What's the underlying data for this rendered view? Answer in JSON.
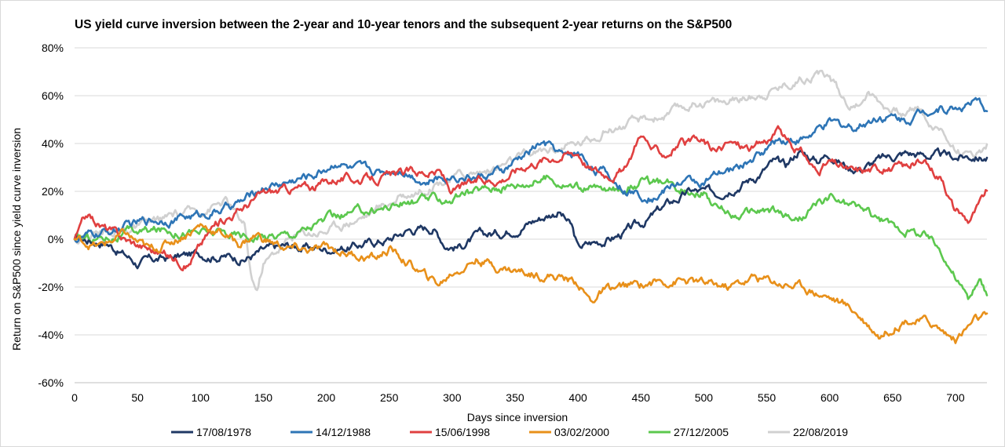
{
  "chart_data": {
    "type": "line",
    "title": "US yield curve inversion between the 2-year and 10-year tenors and the subsequent 2-year returns on the S&P500",
    "xlabel": "Days since inversion",
    "ylabel": "Return on S&P500 since yield curve inversion",
    "xlim": [
      0,
      725
    ],
    "ylim": [
      -60,
      80
    ],
    "x_ticks": [
      0,
      50,
      100,
      150,
      200,
      250,
      300,
      350,
      400,
      450,
      500,
      550,
      600,
      650,
      700
    ],
    "x_tick_labels": [
      "0",
      "50",
      "100",
      "150",
      "200",
      "250",
      "300",
      "350",
      "400",
      "450",
      "500",
      "550",
      "600",
      "650",
      "700"
    ],
    "y_ticks": [
      -60,
      -40,
      -20,
      0,
      20,
      40,
      60,
      80
    ],
    "y_tick_labels": [
      "-60%",
      "-40%",
      "-20%",
      "0%",
      "20%",
      "40%",
      "60%",
      "80%"
    ],
    "grid": "horizontal",
    "legend_position": "bottom",
    "series": [
      {
        "name": "17/08/1978",
        "color": "#1f3864",
        "x": [
          0,
          25,
          50,
          60,
          75,
          100,
          120,
          135,
          150,
          170,
          200,
          220,
          250,
          265,
          285,
          295,
          305,
          320,
          340,
          360,
          385,
          395,
          400,
          410,
          430,
          450,
          470,
          490,
          510,
          520,
          540,
          555,
          565,
          575,
          590,
          600,
          615,
          625,
          640,
          660,
          680,
          700,
          715,
          725
        ],
        "values": [
          0,
          -1,
          -10,
          -9,
          -8,
          -6,
          -7,
          -8,
          -5,
          -3,
          -4,
          -3,
          0,
          4,
          5,
          -2,
          -3,
          1,
          3,
          7,
          12,
          5,
          -4,
          -2,
          1,
          6,
          14,
          20,
          19,
          22,
          26,
          32,
          30,
          37,
          33,
          36,
          30,
          30,
          33,
          36,
          35,
          34,
          35,
          34
        ]
      },
      {
        "name": "14/12/1988",
        "color": "#2e75b6",
        "x": [
          0,
          20,
          40,
          60,
          80,
          100,
          120,
          135,
          150,
          170,
          190,
          200,
          210,
          220,
          240,
          260,
          280,
          300,
          320,
          340,
          360,
          370,
          380,
          390,
          400,
          410,
          420,
          440,
          460,
          480,
          500,
          520,
          540,
          560,
          580,
          600,
          620,
          640,
          660,
          680,
          700,
          715,
          725
        ],
        "values": [
          0,
          2,
          5,
          8,
          9,
          10,
          13,
          16,
          22,
          24,
          27,
          30,
          33,
          29,
          28,
          30,
          24,
          27,
          26,
          28,
          36,
          40,
          38,
          34,
          36,
          31,
          28,
          20,
          18,
          24,
          24,
          28,
          34,
          42,
          42,
          48,
          47,
          52,
          50,
          55,
          55,
          57,
          54
        ]
      },
      {
        "name": "15/06/1998",
        "color": "#e04040",
        "x": [
          0,
          10,
          20,
          40,
          50,
          60,
          80,
          90,
          110,
          120,
          130,
          150,
          170,
          190,
          210,
          230,
          250,
          270,
          290,
          300,
          320,
          340,
          360,
          380,
          400,
          410,
          420,
          430,
          440,
          450,
          460,
          470,
          480,
          500,
          510,
          520,
          540,
          560,
          570,
          580,
          590,
          600,
          620,
          640,
          660,
          670,
          690,
          700,
          710,
          720,
          725
        ],
        "values": [
          0,
          10,
          6,
          0,
          -2,
          -4,
          -8,
          -10,
          5,
          9,
          12,
          19,
          21,
          22,
          26,
          25,
          26,
          28,
          28,
          20,
          24,
          26,
          32,
          35,
          37,
          30,
          28,
          28,
          30,
          45,
          37,
          36,
          40,
          40,
          36,
          40,
          38,
          45,
          38,
          35,
          28,
          32,
          28,
          30,
          30,
          32,
          26,
          12,
          8,
          15,
          20
        ]
      },
      {
        "name": "03/02/2000",
        "color": "#e8901a",
        "x": [
          0,
          20,
          40,
          60,
          80,
          100,
          120,
          130,
          145,
          150,
          160,
          170,
          190,
          200,
          220,
          240,
          250,
          260,
          280,
          290,
          300,
          320,
          340,
          360,
          380,
          400,
          410,
          420,
          440,
          460,
          480,
          500,
          520,
          540,
          560,
          580,
          600,
          620,
          640,
          660,
          680,
          700,
          715,
          725
        ],
        "values": [
          0,
          -3,
          2,
          -5,
          0,
          6,
          2,
          -2,
          2,
          0,
          -2,
          -4,
          -5,
          -4,
          -6,
          -8,
          -4,
          -8,
          -16,
          -19,
          -14,
          -8,
          -12,
          -14,
          -15,
          -18,
          -26,
          -22,
          -20,
          -18,
          -17,
          -19,
          -20,
          -16,
          -18,
          -20,
          -24,
          -30,
          -40,
          -33,
          -35,
          -42,
          -34,
          -33
        ]
      },
      {
        "name": "27/12/2005",
        "color": "#5cc84e",
        "x": [
          0,
          25,
          50,
          75,
          100,
          125,
          150,
          175,
          200,
          225,
          250,
          275,
          300,
          325,
          350,
          375,
          400,
          425,
          450,
          475,
          500,
          510,
          525,
          550,
          575,
          600,
          610,
          625,
          650,
          675,
          690,
          700,
          710,
          720,
          725
        ],
        "values": [
          0,
          1,
          3,
          4,
          3,
          2,
          1,
          3,
          8,
          11,
          14,
          16,
          17,
          21,
          23,
          26,
          22,
          20,
          24,
          22,
          20,
          13,
          10,
          12,
          8,
          18,
          15,
          13,
          5,
          2,
          -5,
          -15,
          -25,
          -18,
          -23
        ]
      },
      {
        "name": "22/08/2019",
        "color": "#d0d0d0",
        "x": [
          0,
          20,
          40,
          60,
          80,
          100,
          120,
          135,
          140,
          145,
          150,
          155,
          160,
          175,
          200,
          230,
          260,
          280,
          300,
          330,
          360,
          380,
          400,
          410,
          420,
          440,
          470,
          500,
          520,
          540,
          560,
          570,
          580,
          590,
          600,
          610,
          620,
          630,
          650,
          660,
          670,
          680,
          690,
          700,
          710,
          720,
          725
        ],
        "values": [
          0,
          3,
          4,
          6,
          10,
          12,
          16,
          5,
          -15,
          -22,
          -10,
          -8,
          -5,
          2,
          4,
          10,
          18,
          22,
          26,
          29,
          35,
          38,
          40,
          42,
          46,
          48,
          52,
          58,
          57,
          60,
          64,
          66,
          68,
          70,
          68,
          60,
          55,
          62,
          54,
          52,
          56,
          48,
          45,
          38,
          35,
          37,
          40
        ]
      }
    ]
  }
}
